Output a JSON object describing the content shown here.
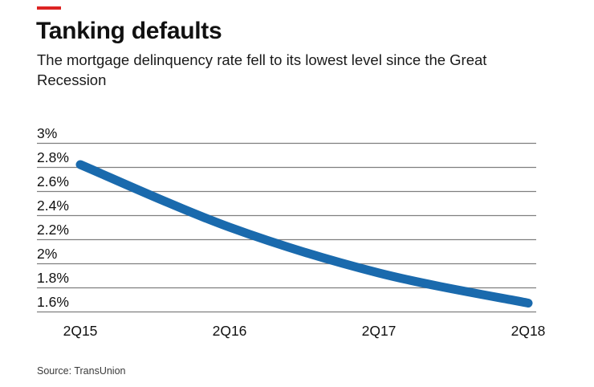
{
  "accent": {
    "color": "#dd2423"
  },
  "header": {
    "title": "Tanking defaults",
    "subtitle": "The mortgage delinquency rate fell to its lowest level since the Great Recession"
  },
  "source": {
    "label": "Source: TransUnion"
  },
  "chart_data": {
    "type": "line",
    "title": "Tanking defaults",
    "subtitle": "The mortgage delinquency rate fell to its lowest level since the Great Recession",
    "categories": [
      "2Q15",
      "2Q16",
      "2Q17",
      "2Q18"
    ],
    "series": [
      {
        "name": "Mortgage delinquency rate",
        "values": [
          2.82,
          2.3,
          1.92,
          1.67
        ]
      }
    ],
    "xlabel": "",
    "ylabel": "",
    "y_ticks": [
      "3%",
      "2.8%",
      "2.6%",
      "2.4%",
      "2.2%",
      "2%",
      "1.8%",
      "1.6%"
    ],
    "y_tick_values": [
      3.0,
      2.8,
      2.6,
      2.4,
      2.2,
      2.0,
      1.8,
      1.6
    ],
    "ylim": [
      1.6,
      3.0
    ],
    "grid": true,
    "legend": false,
    "line_color": "#1a6aad",
    "grid_color": "#7f7f7f",
    "tick_label_color": "#111111",
    "source": "Source: TransUnion"
  }
}
